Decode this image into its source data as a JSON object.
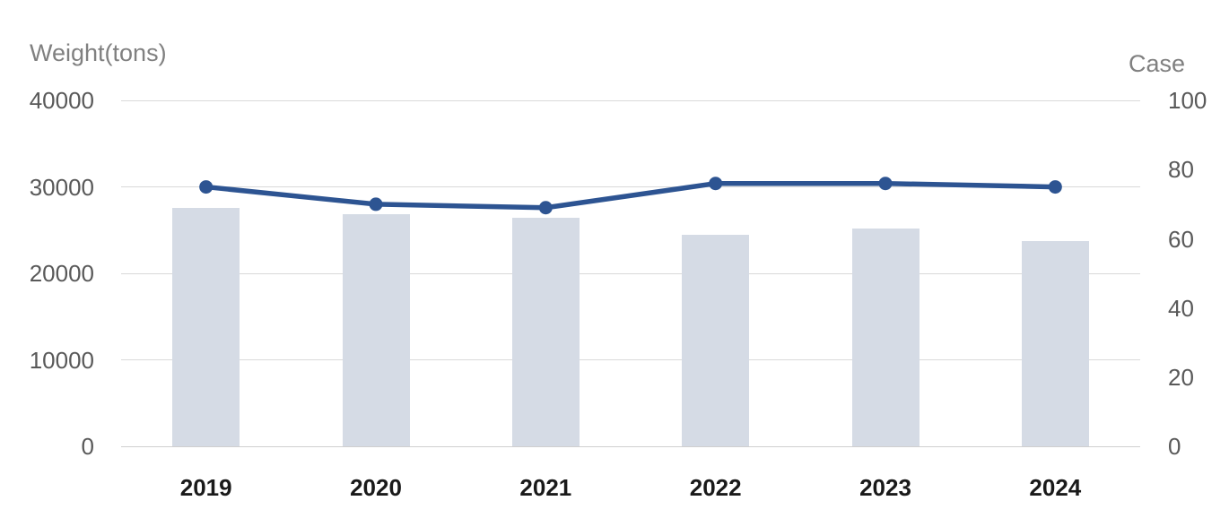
{
  "chart_data": {
    "type": "combo",
    "categories": [
      "2019",
      "2020",
      "2021",
      "2022",
      "2023",
      "2024"
    ],
    "series": [
      {
        "name": "Weight(tons)",
        "type": "bar",
        "axis": "left",
        "values": [
          27600,
          26900,
          26400,
          24500,
          25200,
          23700
        ],
        "color": "#d5dbe5"
      },
      {
        "name": "Case",
        "type": "line",
        "axis": "right",
        "values": [
          75,
          70,
          69,
          76,
          76,
          75
        ],
        "color": "#2d5492"
      }
    ],
    "left_axis": {
      "title": "Weight(tons)",
      "min": 0,
      "max": 40000,
      "tick_step": 10000,
      "tick_labels": [
        "0",
        "10000",
        "20000",
        "30000",
        "40000"
      ]
    },
    "right_axis": {
      "title": "Case",
      "min": 0,
      "max": 100,
      "tick_step": 20,
      "tick_labels": [
        "0",
        "20",
        "40",
        "60",
        "80",
        "100"
      ]
    },
    "grid": "horizontal",
    "legend": "none",
    "background": "#ffffff",
    "grid_color": "#d9d9d9",
    "tick_label_color": "#595959",
    "axis_title_color": "#808080",
    "x_label_color": "#1a1a1a"
  }
}
